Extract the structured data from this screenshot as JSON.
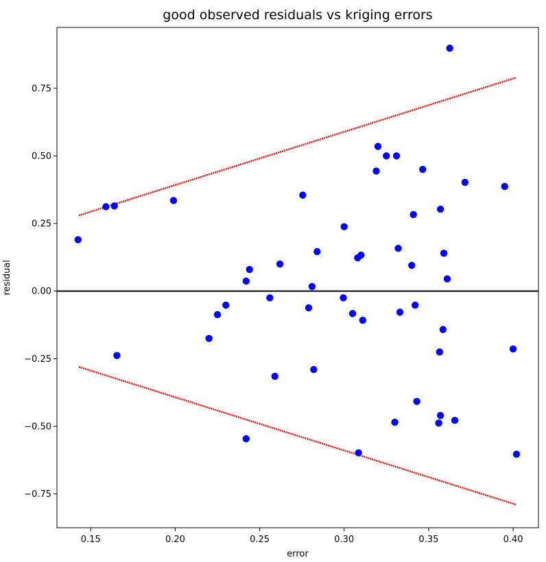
{
  "chart_data": {
    "type": "scatter",
    "title": "good observed residuals vs kriging errors",
    "xlabel": "error",
    "ylabel": "residual",
    "xlim": [
      0.13,
      0.415
    ],
    "ylim": [
      -0.875,
      0.975
    ],
    "xticks": [
      0.15,
      0.2,
      0.25,
      0.3,
      0.35,
      0.4
    ],
    "xtick_labels": [
      "0.15",
      "0.20",
      "0.25",
      "0.30",
      "0.35",
      "0.40"
    ],
    "yticks": [
      -0.75,
      -0.5,
      -0.25,
      0.0,
      0.25,
      0.5,
      0.75
    ],
    "ytick_labels": [
      "−0.75",
      "−0.50",
      "−0.25",
      "0.00",
      "0.25",
      "0.50",
      "0.75"
    ],
    "grid": false,
    "colors": {
      "points": "#0000ff",
      "bounds": "#ff0000",
      "zero_line": "#000000"
    },
    "series": [
      {
        "kind": "points",
        "x": [
          0.1425,
          0.159,
          0.164,
          0.1655,
          0.199,
          0.22,
          0.225,
          0.23,
          0.242,
          0.242,
          0.244,
          0.256,
          0.259,
          0.262,
          0.2755,
          0.279,
          0.281,
          0.282,
          0.284,
          0.2995,
          0.3,
          0.305,
          0.308,
          0.3085,
          0.31,
          0.311,
          0.319,
          0.32,
          0.325,
          0.331,
          0.33,
          0.332,
          0.333,
          0.34,
          0.341,
          0.342,
          0.343,
          0.3465,
          0.356,
          0.3565,
          0.357,
          0.357,
          0.3585,
          0.359,
          0.361,
          0.3625,
          0.3655,
          0.3715,
          0.395,
          0.4,
          0.402
        ],
        "y": [
          0.19,
          0.312,
          0.315,
          -0.238,
          0.335,
          -0.175,
          -0.087,
          -0.052,
          0.037,
          -0.546,
          0.08,
          -0.025,
          -0.315,
          0.1,
          0.355,
          -0.062,
          0.017,
          -0.29,
          0.146,
          -0.025,
          0.238,
          -0.083,
          0.123,
          -0.598,
          0.133,
          -0.108,
          0.444,
          0.535,
          0.5,
          0.5,
          -0.485,
          0.158,
          -0.078,
          0.095,
          0.283,
          -0.052,
          -0.408,
          0.45,
          -0.488,
          -0.225,
          0.303,
          -0.46,
          -0.142,
          0.14,
          0.045,
          0.898,
          -0.478,
          0.402,
          0.387,
          -0.214,
          -0.603
        ]
      },
      {
        "kind": "upper-bound",
        "x": [
          0.143,
          0.402
        ],
        "y": [
          0.28,
          0.79
        ]
      },
      {
        "kind": "lower-bound",
        "x": [
          0.143,
          0.402
        ],
        "y": [
          -0.28,
          -0.79
        ]
      },
      {
        "kind": "zero-line",
        "y": 0
      }
    ]
  }
}
